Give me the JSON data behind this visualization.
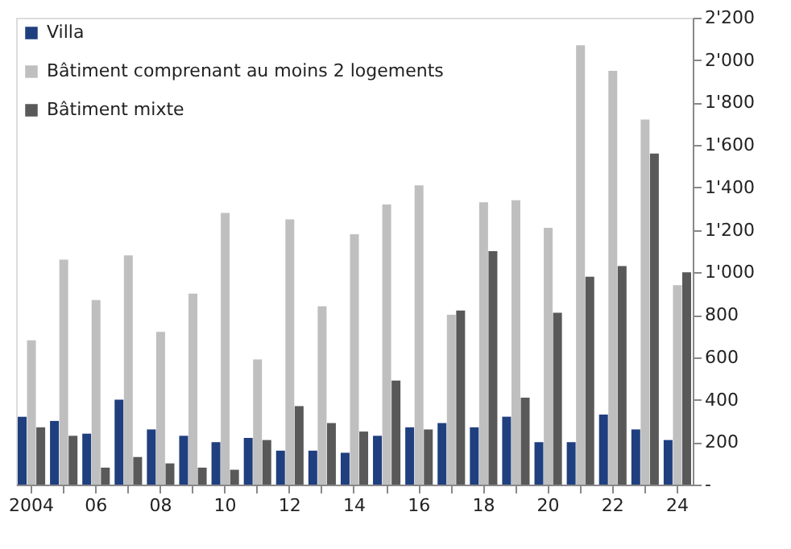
{
  "chart_data": {
    "type": "bar",
    "categories": [
      "2004",
      null,
      "06",
      null,
      "08",
      null,
      "10",
      null,
      "12",
      null,
      "14",
      null,
      "16",
      null,
      "18",
      null,
      "20",
      null,
      "22",
      null,
      "24"
    ],
    "series": [
      {
        "name": "Villa",
        "color": "#1f3f7f",
        "values": [
          320,
          300,
          240,
          400,
          260,
          230,
          200,
          220,
          160,
          160,
          150,
          230,
          270,
          290,
          270,
          320,
          200,
          200,
          330,
          260,
          210
        ]
      },
      {
        "name": "Bâtiment comprenant au moins 2 logements",
        "color": "#bfbfbf",
        "values": [
          680,
          1060,
          870,
          1080,
          720,
          900,
          1280,
          590,
          1250,
          840,
          1180,
          1320,
          1410,
          800,
          1330,
          1340,
          1210,
          2070,
          1950,
          1720,
          940
        ]
      },
      {
        "name": "Bâtiment mixte",
        "color": "#595959",
        "values": [
          270,
          230,
          80,
          130,
          100,
          80,
          70,
          210,
          370,
          290,
          250,
          490,
          260,
          820,
          1100,
          410,
          810,
          980,
          1030,
          1560,
          1000
        ]
      }
    ],
    "ylim": [
      0,
      2200
    ],
    "yticks": [
      {
        "value": 0,
        "label": "-"
      },
      200,
      400,
      600,
      800,
      {
        "value": 1000,
        "label": "1'000"
      },
      {
        "value": 1200,
        "label": "1'200"
      },
      {
        "value": 1400,
        "label": "1'400"
      },
      {
        "value": 1600,
        "label": "1'600"
      },
      {
        "value": 1800,
        "label": "1'800"
      },
      {
        "value": 2000,
        "label": "2'000"
      },
      {
        "value": 2200,
        "label": "2'200"
      }
    ],
    "grid": false,
    "legend": "top left"
  }
}
